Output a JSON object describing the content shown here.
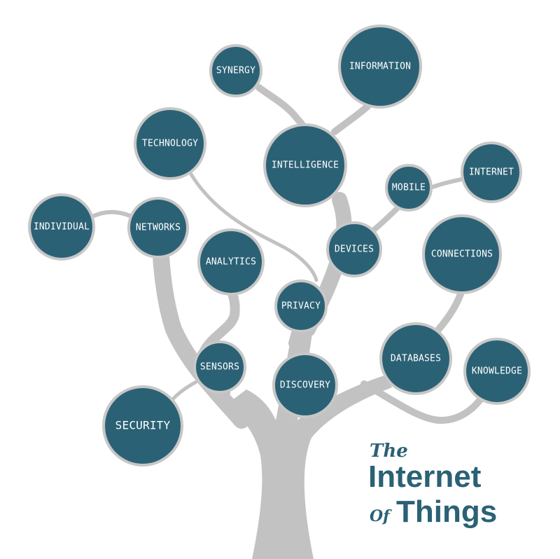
{
  "diagram": {
    "nodes": [
      {
        "id": "synergy",
        "label": "SYNERGY"
      },
      {
        "id": "information",
        "label": "INFORMATION"
      },
      {
        "id": "technology",
        "label": "TECHNOLOGY"
      },
      {
        "id": "intelligence",
        "label": "INTELLIGENCE"
      },
      {
        "id": "mobile",
        "label": "MOBILE"
      },
      {
        "id": "internet",
        "label": "INTERNET"
      },
      {
        "id": "individual",
        "label": "INDIVIDUAL"
      },
      {
        "id": "networks",
        "label": "NETWORKS"
      },
      {
        "id": "analytics",
        "label": "ANALYTICS"
      },
      {
        "id": "devices",
        "label": "DEVICES"
      },
      {
        "id": "connections",
        "label": "CONNECTIONS"
      },
      {
        "id": "privacy",
        "label": "PRIVACY"
      },
      {
        "id": "sensors",
        "label": "SENSORS"
      },
      {
        "id": "discovery",
        "label": "DISCOVERY"
      },
      {
        "id": "databases",
        "label": "DATABASES"
      },
      {
        "id": "knowledge",
        "label": "KNOWLEDGE"
      },
      {
        "id": "security",
        "label": "SECURITY"
      }
    ]
  },
  "title": {
    "the": "The",
    "line1": "Internet",
    "of": "Of",
    "line2": "Things"
  },
  "colors": {
    "node_fill": "#2b6175",
    "node_stroke": "#c7c7c7",
    "branch": "#c2c2c2",
    "title": "#2b6175"
  }
}
